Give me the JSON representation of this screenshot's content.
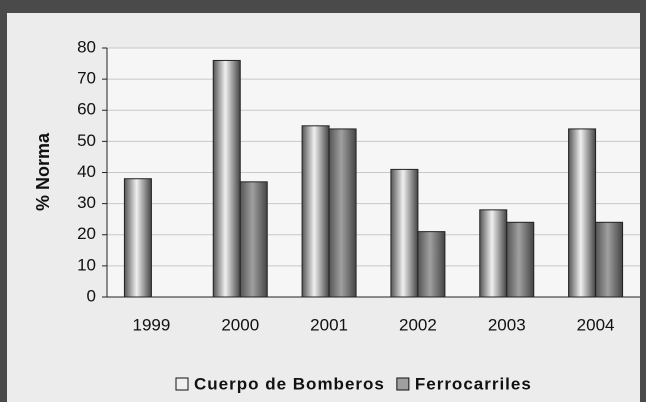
{
  "chart_data": {
    "type": "bar",
    "y_label": "% Norma",
    "categories": [
      "1999",
      "2000",
      "2001",
      "2002",
      "2003",
      "2004"
    ],
    "series": [
      {
        "name": "Cuerpo de Bomberos",
        "color": "#f0f0f0",
        "values": [
          38,
          76,
          55,
          41,
          28,
          54
        ]
      },
      {
        "name": "Ferrocarriles",
        "color": "#a0a0a0",
        "values": [
          null,
          37,
          54,
          21,
          24,
          24
        ]
      }
    ],
    "ylim": [
      0,
      80
    ],
    "yticks": [
      0,
      10,
      20,
      30,
      40,
      50,
      60,
      70,
      80
    ],
    "grid": true,
    "legend": "bottom"
  }
}
